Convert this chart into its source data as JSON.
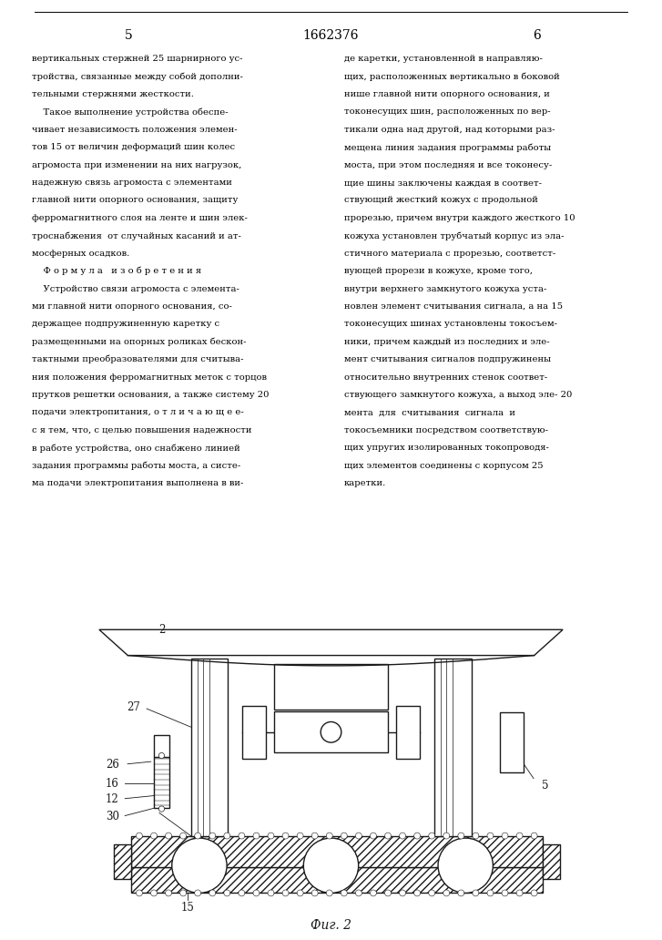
{
  "page_number_left": "5",
  "patent_number": "1662376",
  "page_number_right": "6",
  "background_color": "#ffffff",
  "text_color": "#000000",
  "drawing_color": "#1a1a1a",
  "figure_caption": "Фиг. 2",
  "left_lines": [
    "вертикальных стержней 25 шарнирного ус-",
    "тройства, связанные между собой дополни-",
    "тельными стержнями жесткости.",
    "    Такое выполнение устройства обеспе-",
    "чивает независимость положения элемен-",
    "тов 15 от величин деформаций шин колес",
    "агромоста при изменении на них нагрузок,",
    "надежную связь агромоста с элементами",
    "главной нити опорного основания, защиту",
    "ферромагнитного слоя на ленте и шин элек-",
    "троснабжения  от случайных касаний и ат-",
    "мосферных осадков.",
    "    Ф о р м у л а   и з о б р е т е н и я",
    "    Устройство связи агромоста с элемента-",
    "ми главной нити опорного основания, со-",
    "держащее подпружиненную каретку с",
    "размещенными на опорных роликах бескон-",
    "тактными преобразователями для считыва-",
    "ния положения ферромагнитных меток с торцов",
    "прутков решетки основания, а также систему 20",
    "подачи электропитания, о т л и ч а ю щ е е-",
    "с я тем, что, с целью повышения надежности",
    "в работе устройства, оно снабжено линией",
    "задания программы работы моста, а систе-",
    "ма подачи электропитания выполнена в ви-"
  ],
  "right_lines": [
    "де каретки, установленной в направляю-",
    "щих, расположенных вертикально в боковой",
    "нише главной нити опорного основания, и",
    "токонесущих шин, расположенных по вер-",
    "тикали одна над другой, над которыми раз-",
    "мещена линия задания программы работы",
    "моста, при этом последняя и все токонесу-",
    "щие шины заключены каждая в соответ-",
    "ствующий жесткий кожух с продольной",
    "прорезью, причем внутри каждого жесткого 10",
    "кожуха установлен трубчатый корпус из эла-",
    "стичного материала с прорезью, соответст-",
    "вующей прорези в кожухе, кроме того,",
    "внутри верхнего замкнутого кожуха уста-",
    "новлен элемент считывания сигнала, а на 15",
    "токонесущих шинах установлены токосъем-",
    "ники, причем каждый из последних и эле-",
    "мент считывания сигналов подпружинены",
    "относительно внутренних стенок соответ-",
    "ствующего замкнутого кожуха, а выход эле- 20",
    "мента  для  считывания  сигнала  и",
    "токосъемники посредством соответствую-",
    "щих упругих изолированных токопроводя-",
    "щих элементов соединены с корпусом 25",
    "каретки."
  ]
}
